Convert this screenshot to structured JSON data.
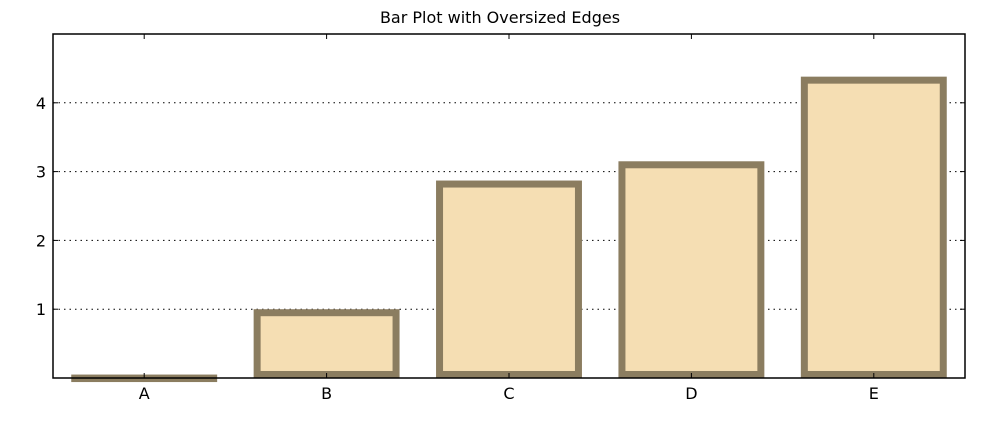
{
  "chart_data": {
    "type": "bar",
    "title": "Bar Plot with Oversized Edges",
    "xlabel": "",
    "ylabel": "",
    "categories": [
      "A",
      "B",
      "C",
      "D",
      "E"
    ],
    "values": [
      0.05,
      1.0,
      2.87,
      3.15,
      4.38
    ],
    "ylim": [
      0,
      5
    ],
    "yticks": [
      1,
      2,
      3,
      4
    ],
    "ytick_labels": [
      "1",
      "2",
      "3",
      "4"
    ],
    "grid": "y-dotted",
    "colors": {
      "bar_fill": "#f5deb3",
      "bar_edge": "#8b7d60"
    }
  }
}
